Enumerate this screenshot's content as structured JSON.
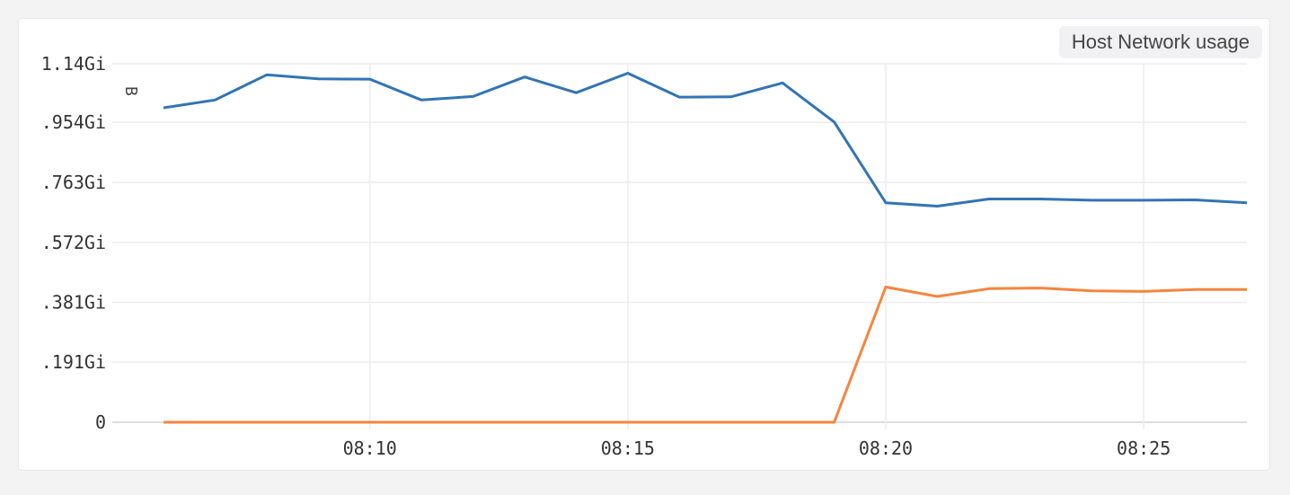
{
  "panel": {
    "title": "Host Network usage"
  },
  "chart_data": {
    "type": "line",
    "title": "Host Network usage",
    "ylabel": "B",
    "xlabel": "",
    "ylim": [
      0,
      1.14
    ],
    "yticks": [
      {
        "value": 1.14,
        "label": "1.14Gi"
      },
      {
        "value": 0.954,
        "label": ".954Gi"
      },
      {
        "value": 0.763,
        "label": ".763Gi"
      },
      {
        "value": 0.572,
        "label": ".572Gi"
      },
      {
        "value": 0.381,
        "label": ".381Gi"
      },
      {
        "value": 0.191,
        "label": ".191Gi"
      },
      {
        "value": 0,
        "label": "0"
      }
    ],
    "xticks": [
      "08:10",
      "08:15",
      "08:20",
      "08:25"
    ],
    "x": [
      "08:06",
      "08:07",
      "08:08",
      "08:09",
      "08:10",
      "08:11",
      "08:12",
      "08:13",
      "08:14",
      "08:15",
      "08:16",
      "08:17",
      "08:18",
      "08:19",
      "08:20",
      "08:21",
      "08:22",
      "08:23",
      "08:24",
      "08:25",
      "08:26",
      "08:27"
    ],
    "xlim": [
      "08:06",
      "08:27"
    ],
    "series": [
      {
        "color": "#3274b5",
        "values": [
          1.0,
          1.025,
          1.105,
          1.092,
          1.091,
          1.025,
          1.036,
          1.098,
          1.048,
          1.11,
          1.034,
          1.035,
          1.079,
          0.955,
          0.698,
          0.687,
          0.71,
          0.71,
          0.706,
          0.706,
          0.707,
          0.698
        ]
      },
      {
        "color": "#f6843e",
        "values": [
          0,
          0,
          0,
          0,
          0,
          0,
          0,
          0,
          0,
          0,
          0,
          0,
          0,
          0,
          0.43,
          0.4,
          0.425,
          0.427,
          0.418,
          0.416,
          0.422,
          0.422
        ]
      }
    ],
    "grid": true,
    "legend": "none"
  }
}
